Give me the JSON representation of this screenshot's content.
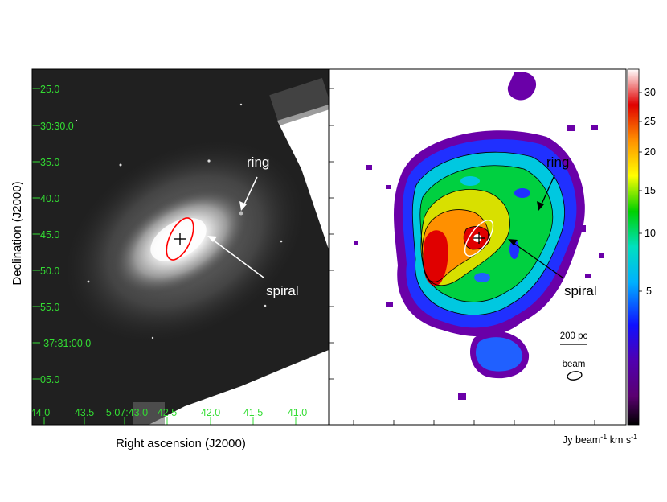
{
  "left_panel": {
    "dec_ticks": [
      "25.0",
      "30:30.0",
      "35.0",
      "40.0",
      "45.0",
      "50.0",
      "55.0",
      "-37:31:00.0",
      "05.0"
    ],
    "ra_ticks": [
      "44.0",
      "43.5",
      "5:07:43.0",
      "42.5",
      "42.0",
      "41.5",
      "41.0"
    ],
    "ylabel": "Declination (J2000)",
    "xlabel": "Right ascension (J2000)",
    "annot_ring": "ring",
    "annot_spiral": "spiral",
    "tick_color": "#33dd33",
    "ellipse_color": "#ff0000"
  },
  "right_panel": {
    "annot_ring": "ring",
    "annot_spiral": "spiral",
    "scalebar_label": "200 pc",
    "beam_label": "beam",
    "colorbar_ticks": [
      "30",
      "25",
      "20",
      "15",
      "10",
      "5"
    ],
    "colorbar_label_pre": "Jy beam",
    "colorbar_label_sup": "-1",
    "colorbar_label_post": " km s",
    "colorbar_label_sup2": "-1"
  }
}
